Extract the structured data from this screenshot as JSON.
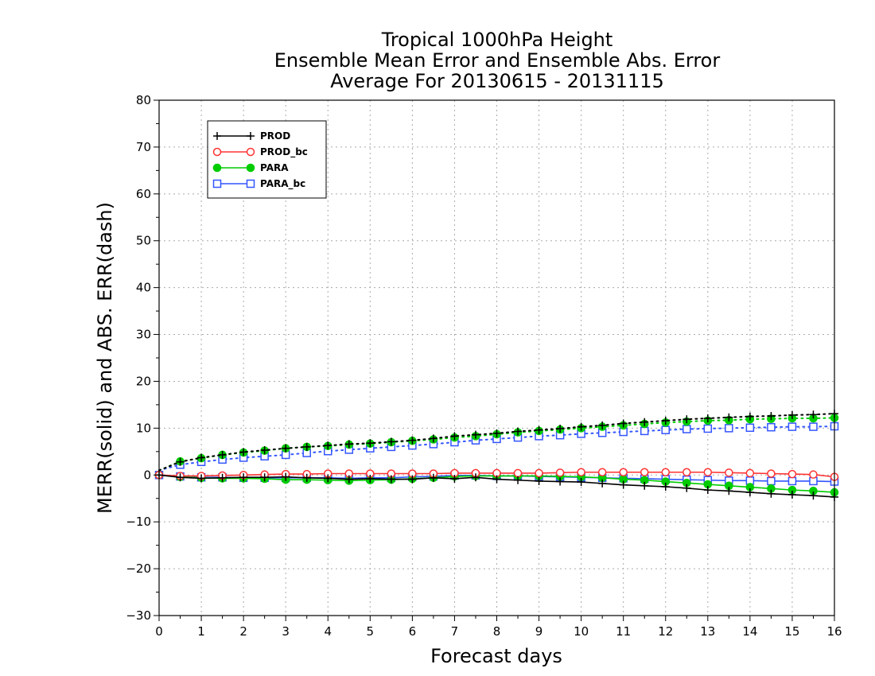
{
  "chart_data": {
    "type": "line",
    "title": [
      "Tropical 1000hPa Height",
      "Ensemble Mean Error and Ensemble Abs. Error",
      "Average For 20130615 - 20131115"
    ],
    "xlabel": "Forecast days",
    "ylabel": "MERR(solid) and ABS. ERR(dash)",
    "xlim": [
      0,
      16
    ],
    "ylim": [
      -30,
      80
    ],
    "xticks": [
      "0",
      "1",
      "2",
      "3",
      "4",
      "5",
      "6",
      "7",
      "8",
      "9",
      "10",
      "11",
      "12",
      "13",
      "14",
      "15",
      "16"
    ],
    "yticks": [
      "−30",
      "−20",
      "−10",
      "0",
      "10",
      "20",
      "30",
      "40",
      "50",
      "60",
      "70",
      "80"
    ],
    "grid": true,
    "legend_position": "top-left",
    "x": [
      0,
      0.5,
      1,
      1.5,
      2,
      2.5,
      3,
      3.5,
      4,
      4.5,
      5,
      5.5,
      6,
      6.5,
      7,
      7.5,
      8,
      8.5,
      9,
      9.5,
      10,
      10.5,
      11,
      11.5,
      12,
      12.5,
      13,
      13.5,
      14,
      14.5,
      15,
      15.5,
      16
    ],
    "series": [
      {
        "name": "PROD",
        "color": "#000000",
        "marker": "plus",
        "merr": [
          0,
          -0.5,
          -0.7,
          -0.6,
          -0.5,
          -0.5,
          -0.4,
          -0.6,
          -0.7,
          -0.9,
          -0.8,
          -0.9,
          -0.9,
          -0.6,
          -0.8,
          -0.5,
          -0.9,
          -1.1,
          -1.3,
          -1.4,
          -1.5,
          -1.8,
          -2.1,
          -2.3,
          -2.5,
          -2.8,
          -3.2,
          -3.4,
          -3.7,
          -4.0,
          -4.2,
          -4.4,
          -4.7
        ],
        "abs": [
          1,
          2.8,
          3.7,
          4.3,
          4.9,
          5.3,
          5.7,
          6.0,
          6.3,
          6.6,
          6.8,
          7.1,
          7.4,
          7.8,
          8.3,
          8.6,
          8.9,
          9.3,
          9.6,
          9.9,
          10.3,
          10.6,
          11.0,
          11.3,
          11.6,
          11.9,
          12.1,
          12.3,
          12.5,
          12.6,
          12.8,
          12.9,
          13.1
        ]
      },
      {
        "name": "PROD_bc",
        "color": "#ff3333",
        "marker": "open-circle",
        "merr": [
          0,
          -0.2,
          -0.2,
          -0.1,
          0,
          0.1,
          0.2,
          0.2,
          0.3,
          0.3,
          0.3,
          0.3,
          0.3,
          0.3,
          0.4,
          0.4,
          0.4,
          0.4,
          0.4,
          0.5,
          0.6,
          0.6,
          0.6,
          0.6,
          0.6,
          0.6,
          0.6,
          0.5,
          0.4,
          0.3,
          0.2,
          0.1,
          -0.4
        ]
      },
      {
        "name": "PARA",
        "color": "#00cc00",
        "marker": "filled-circle",
        "merr": [
          0,
          -0.4,
          -0.6,
          -0.7,
          -0.7,
          -0.8,
          -1.0,
          -1.0,
          -1.1,
          -1.2,
          -1.1,
          -1.0,
          -0.8,
          -0.6,
          -0.3,
          -0.2,
          -0.2,
          -0.2,
          -0.2,
          -0.3,
          -0.4,
          -0.6,
          -0.9,
          -1.1,
          -1.4,
          -1.7,
          -2.0,
          -2.3,
          -2.6,
          -2.9,
          -3.2,
          -3.4,
          -3.7
        ],
        "abs": [
          1,
          2.9,
          3.6,
          4.3,
          4.8,
          5.2,
          5.7,
          6.0,
          6.2,
          6.5,
          6.7,
          7.0,
          7.3,
          7.6,
          8.0,
          8.3,
          8.7,
          9.1,
          9.4,
          9.7,
          10.0,
          10.3,
          10.6,
          10.9,
          11.2,
          11.4,
          11.6,
          11.7,
          11.9,
          12.0,
          12.1,
          12.1,
          12.2
        ]
      },
      {
        "name": "PARA_bc",
        "color": "#3355ff",
        "marker": "open-square",
        "merr": [
          0,
          -0.3,
          -0.5,
          -0.5,
          -0.6,
          -0.6,
          -0.6,
          -0.6,
          -0.6,
          -0.7,
          -0.6,
          -0.6,
          -0.4,
          -0.3,
          -0.1,
          -0.1,
          -0.2,
          -0.2,
          -0.3,
          -0.4,
          -0.5,
          -0.6,
          -0.7,
          -0.8,
          -0.9,
          -1.0,
          -1.1,
          -1.2,
          -1.2,
          -1.3,
          -1.3,
          -1.3,
          -1.4
        ],
        "abs": [
          1,
          2.2,
          2.8,
          3.3,
          3.7,
          4.0,
          4.3,
          4.7,
          5.1,
          5.4,
          5.7,
          6.0,
          6.3,
          6.6,
          7.0,
          7.4,
          7.7,
          8.0,
          8.3,
          8.5,
          8.8,
          9.0,
          9.2,
          9.4,
          9.6,
          9.8,
          9.9,
          10.0,
          10.1,
          10.2,
          10.3,
          10.3,
          10.4
        ]
      }
    ]
  }
}
